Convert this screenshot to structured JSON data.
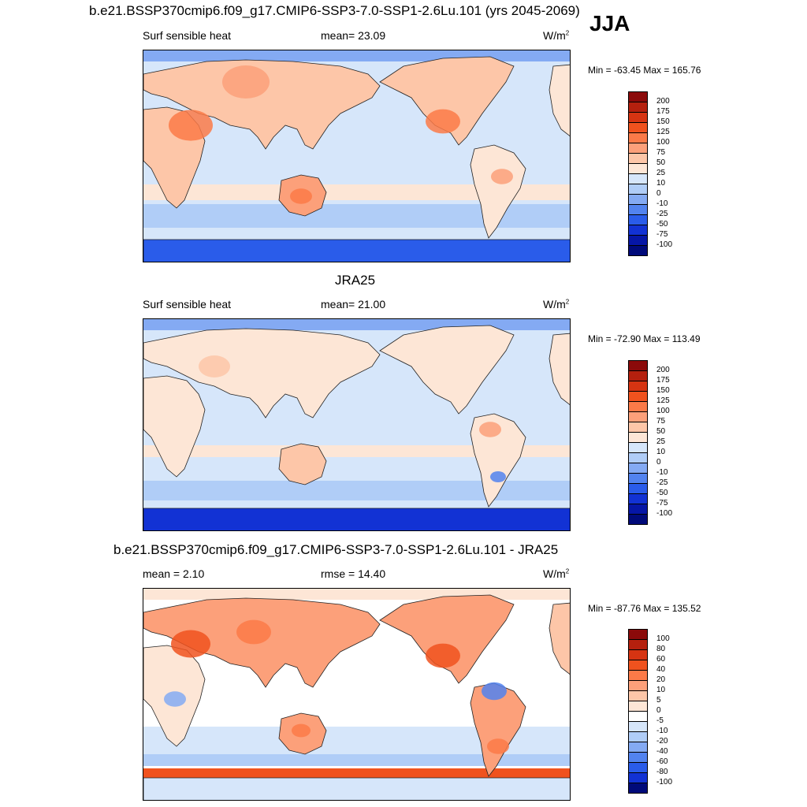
{
  "season": "JJA",
  "units_text": "W/m",
  "units_exp": "2",
  "panels": [
    {
      "title": "b.e21.BSSP370cmip6.f09_g17.CMIP6-SSP3-7.0-SSP1-2.6Lu.101 (yrs 2045-2069)",
      "left_label": "Surf sensible heat",
      "center_label": "mean=  23.09",
      "minmax": "Min = -63.45 Max = 165.76",
      "colorbar": {
        "labels": [
          "200",
          "175",
          "150",
          "125",
          "100",
          "75",
          "50",
          "25",
          "10",
          "0",
          "-10",
          "-25",
          "-50",
          "-75",
          "-100"
        ],
        "colors": [
          "#8b0a0a",
          "#b5200e",
          "#d63412",
          "#f0521e",
          "#fb7a48",
          "#fca07a",
          "#fdc6a8",
          "#fde6d6",
          "#d6e6fa",
          "#b0cdf7",
          "#84aaf3",
          "#5283ef",
          "#2a5cea",
          "#1232d4",
          "#0616a6",
          "#000a7a"
        ]
      },
      "map_style": "model"
    },
    {
      "title": "JRA25",
      "left_label": "Surf sensible heat",
      "center_label": "mean=  21.00",
      "minmax": "Min = -72.90 Max = 113.49",
      "colorbar": {
        "labels": [
          "200",
          "175",
          "150",
          "125",
          "100",
          "75",
          "50",
          "25",
          "10",
          "0",
          "-10",
          "-25",
          "-50",
          "-75",
          "-100"
        ],
        "colors": [
          "#8b0a0a",
          "#b5200e",
          "#d63412",
          "#f0521e",
          "#fb7a48",
          "#fca07a",
          "#fdc6a8",
          "#fde6d6",
          "#d6e6fa",
          "#b0cdf7",
          "#84aaf3",
          "#5283ef",
          "#2a5cea",
          "#1232d4",
          "#0616a6",
          "#000a7a"
        ]
      },
      "map_style": "obs"
    },
    {
      "title": "b.e21.BSSP370cmip6.f09_g17.CMIP6-SSP3-7.0-SSP1-2.6Lu.101 - JRA25",
      "left_label": "mean =   2.10",
      "center_label": "rmse =  14.40",
      "minmax": "Min = -87.76 Max = 135.52",
      "colorbar": {
        "labels": [
          "100",
          "80",
          "60",
          "40",
          "20",
          "10",
          "5",
          "0",
          "-5",
          "-10",
          "-20",
          "-40",
          "-60",
          "-80",
          "-100"
        ],
        "colors": [
          "#8b0a0a",
          "#b5200e",
          "#d63412",
          "#f0521e",
          "#fb7a48",
          "#fca07a",
          "#fdc6a8",
          "#fde6d6",
          "#ffffff",
          "#d6e6fa",
          "#b0cdf7",
          "#84aaf3",
          "#5283ef",
          "#2a5cea",
          "#1232d4",
          "#000a7a"
        ]
      },
      "map_style": "diff"
    }
  ]
}
